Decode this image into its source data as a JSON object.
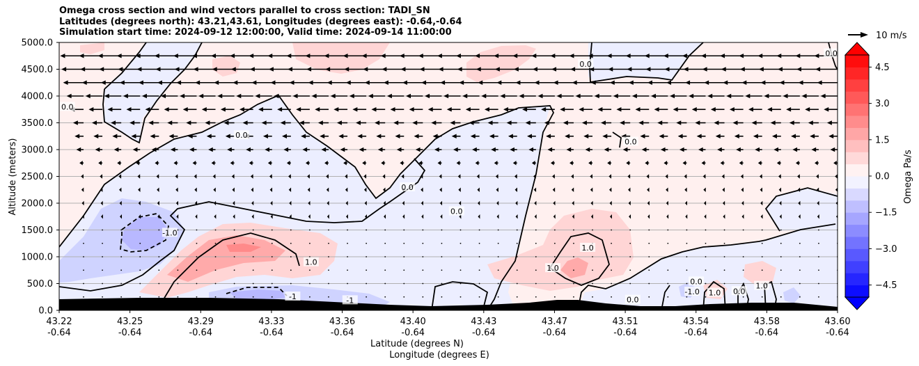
{
  "chart_data": {
    "type": "contour",
    "title_lines": [
      "Omega cross section and wind vectors parallel to cross section: TADI_SN",
      "Latitudes (degrees north): 43.21,43.61, Longitudes (degrees east): -0.64,-0.64",
      "Simulation start time: 2024-09-12 12:00:00, Valid time: 2024-09-14 11:00:00"
    ],
    "xlabel": "Latitude (degrees N)",
    "xlabel2": "Longitude (degrees E)",
    "ylabel": "Altitude (meters)",
    "x_ticks": [
      {
        "lat": "43.22",
        "lon": "-0.64"
      },
      {
        "lat": "43.25",
        "lon": "-0.64"
      },
      {
        "lat": "43.29",
        "lon": "-0.64"
      },
      {
        "lat": "43.33",
        "lon": "-0.64"
      },
      {
        "lat": "43.36",
        "lon": "-0.64"
      },
      {
        "lat": "43.40",
        "lon": "-0.64"
      },
      {
        "lat": "43.43",
        "lon": "-0.64"
      },
      {
        "lat": "43.47",
        "lon": "-0.64"
      },
      {
        "lat": "43.51",
        "lon": "-0.64"
      },
      {
        "lat": "43.54",
        "lon": "-0.64"
      },
      {
        "lat": "43.58",
        "lon": "-0.64"
      },
      {
        "lat": "43.60",
        "lon": "-0.64"
      }
    ],
    "y_ticks": [
      "0.0",
      "500.0",
      "1000.0",
      "1500.0",
      "2000.0",
      "2500.0",
      "3000.0",
      "3500.0",
      "4000.0",
      "4500.0",
      "5000.0"
    ],
    "ylim": [
      0,
      5000
    ],
    "grid": "horizontal",
    "colorbar": {
      "label": "Omega Pa/s",
      "range": [
        -5,
        5
      ],
      "ticks": [
        "4.5",
        "3.0",
        "1.5",
        "0.0",
        "−1.5",
        "−3.0",
        "−4.5"
      ],
      "tick_values": [
        4.5,
        3.0,
        1.5,
        0.0,
        -1.5,
        -3.0,
        -4.5
      ],
      "colormap": "bwr",
      "extend": "both"
    },
    "quiver_key": "10 m/s",
    "contour_labels": [
      {
        "text": "0.0",
        "x": 43.224,
        "y": 3800
      },
      {
        "text": "0.0",
        "x": 43.309,
        "y": 3270
      },
      {
        "text": "-1.0",
        "x": 43.274,
        "y": 1450
      },
      {
        "text": "1.0",
        "x": 43.343,
        "y": 900
      },
      {
        "text": "-1",
        "x": 43.334,
        "y": 260
      },
      {
        "text": "-1",
        "x": 43.362,
        "y": 190
      },
      {
        "text": "0.0",
        "x": 43.39,
        "y": 2300
      },
      {
        "text": "0.0",
        "x": 43.414,
        "y": 1850
      },
      {
        "text": "0.0",
        "x": 43.477,
        "y": 4600
      },
      {
        "text": "0.0",
        "x": 43.499,
        "y": 3150
      },
      {
        "text": "1.0",
        "x": 43.478,
        "y": 1170
      },
      {
        "text": "1.0",
        "x": 43.461,
        "y": 790
      },
      {
        "text": "0.0",
        "x": 43.5,
        "y": 200
      },
      {
        "text": "-1.0",
        "x": 43.529,
        "y": 350
      },
      {
        "text": "0.0",
        "x": 43.531,
        "y": 540
      },
      {
        "text": "1.0",
        "x": 43.54,
        "y": 330
      },
      {
        "text": "0.0",
        "x": 43.552,
        "y": 360
      },
      {
        "text": "1.0",
        "x": 43.563,
        "y": 460
      },
      {
        "text": "0.0",
        "x": 43.597,
        "y": 4800
      }
    ],
    "wind_profile_u": [
      {
        "alt": 0,
        "u": 0
      },
      {
        "alt": 750,
        "u": 0
      },
      {
        "alt": 1000,
        "u": -0.2
      },
      {
        "alt": 2000,
        "u": -0.6
      },
      {
        "alt": 2500,
        "u": -0.9
      },
      {
        "alt": 2750,
        "u": -1.4
      },
      {
        "alt": 3000,
        "u": -2.5
      },
      {
        "alt": 3500,
        "u": -3.6
      },
      {
        "alt": 4000,
        "u": -5.8
      },
      {
        "alt": 4250,
        "u": -7.0
      },
      {
        "alt": 4500,
        "u": -7.6
      },
      {
        "alt": 5000,
        "u": -8.4
      }
    ]
  }
}
